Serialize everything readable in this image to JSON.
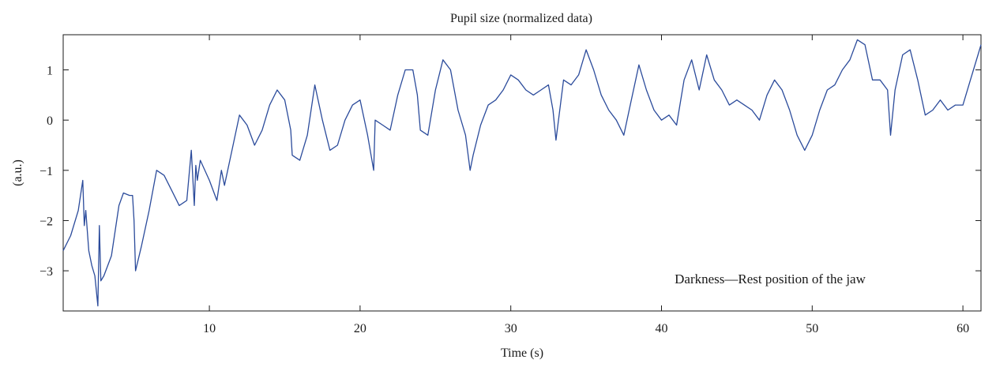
{
  "chart_data": {
    "type": "line",
    "title": "Pupil size (normalized data)",
    "xlabel": "Time (s)",
    "ylabel": "(a.u.)",
    "annotation": "Darkness—Rest position of the jaw",
    "xlim": [
      0.3,
      61.2
    ],
    "ylim": [
      -3.8,
      1.7
    ],
    "xticks": [
      10,
      20,
      30,
      40,
      50,
      60
    ],
    "yticks": [
      -3,
      -2,
      -1,
      0,
      1
    ],
    "xtick_labels": [
      "10",
      "20",
      "30",
      "40",
      "50",
      "60"
    ],
    "ytick_labels": [
      "−3",
      "−2",
      "−1",
      "0",
      "1"
    ],
    "grid": false,
    "series": [
      {
        "color": "#2b4b9b",
        "x": [
          0.3,
          0.8,
          1.3,
          1.6,
          1.7,
          1.8,
          2.0,
          2.2,
          2.4,
          2.6,
          2.7,
          2.8,
          3.0,
          3.5,
          4.0,
          4.3,
          4.7,
          4.9,
          5.0,
          5.1,
          5.5,
          6.0,
          6.5,
          7.0,
          7.5,
          8.0,
          8.5,
          8.8,
          9.0,
          9.1,
          9.2,
          9.4,
          10.0,
          10.5,
          10.8,
          11.0,
          11.5,
          12.0,
          12.5,
          13.0,
          13.5,
          14.0,
          14.5,
          15.0,
          15.2,
          15.4,
          15.5,
          16.0,
          16.5,
          17.0,
          17.5,
          18.0,
          18.5,
          19.0,
          19.5,
          20.0,
          20.5,
          20.9,
          21.0,
          21.5,
          22.0,
          22.5,
          23.0,
          23.5,
          23.8,
          24.0,
          24.5,
          25.0,
          25.5,
          26.0,
          26.5,
          27.0,
          27.3,
          27.5,
          28.0,
          28.5,
          29.0,
          29.5,
          30.0,
          30.5,
          31.0,
          31.5,
          32.0,
          32.5,
          32.8,
          33.0,
          33.5,
          34.0,
          34.5,
          35.0,
          35.5,
          36.0,
          36.5,
          37.0,
          37.5,
          38.0,
          38.5,
          39.0,
          39.5,
          40.0,
          40.5,
          41.0,
          41.5,
          42.0,
          42.5,
          43.0,
          43.5,
          44.0,
          44.5,
          45.0,
          45.5,
          46.0,
          46.5,
          47.0,
          47.5,
          48.0,
          48.5,
          49.0,
          49.5,
          50.0,
          50.5,
          51.0,
          51.5,
          52.0,
          52.5,
          53.0,
          53.5,
          54.0,
          54.5,
          55.0,
          55.2,
          55.5,
          56.0,
          56.5,
          57.0,
          57.5,
          58.0,
          58.5,
          59.0,
          59.5,
          60.0,
          60.5,
          61.0,
          61.2
        ],
        "y": [
          -2.6,
          -2.3,
          -1.8,
          -1.2,
          -2.1,
          -1.8,
          -2.6,
          -2.9,
          -3.1,
          -3.7,
          -2.1,
          -3.2,
          -3.1,
          -2.7,
          -1.7,
          -1.45,
          -1.5,
          -1.5,
          -2.0,
          -3.0,
          -2.5,
          -1.8,
          -1.0,
          -1.1,
          -1.4,
          -1.7,
          -1.6,
          -0.6,
          -1.7,
          -0.9,
          -1.2,
          -0.8,
          -1.2,
          -1.6,
          -1.0,
          -1.3,
          -0.6,
          0.1,
          -0.1,
          -0.5,
          -0.2,
          0.3,
          0.6,
          0.4,
          0.1,
          -0.2,
          -0.7,
          -0.8,
          -0.3,
          0.7,
          0.0,
          -0.6,
          -0.5,
          0.0,
          0.3,
          0.4,
          -0.3,
          -1.0,
          0.0,
          -0.1,
          -0.2,
          0.5,
          1.0,
          1.0,
          0.5,
          -0.2,
          -0.3,
          0.6,
          1.2,
          1.0,
          0.2,
          -0.3,
          -1.0,
          -0.7,
          -0.1,
          0.3,
          0.4,
          0.6,
          0.9,
          0.8,
          0.6,
          0.5,
          0.6,
          0.7,
          0.2,
          -0.4,
          0.8,
          0.7,
          0.9,
          1.4,
          1.0,
          0.5,
          0.2,
          0.0,
          -0.3,
          0.4,
          1.1,
          0.6,
          0.2,
          0.0,
          0.1,
          -0.1,
          0.8,
          1.2,
          0.6,
          1.3,
          0.8,
          0.6,
          0.3,
          0.4,
          0.3,
          0.2,
          0.0,
          0.5,
          0.8,
          0.6,
          0.2,
          -0.3,
          -0.6,
          -0.3,
          0.2,
          0.6,
          0.7,
          1.0,
          1.2,
          1.6,
          1.5,
          0.8,
          0.8,
          0.6,
          -0.3,
          0.6,
          1.3,
          1.4,
          0.8,
          0.1,
          0.2,
          0.4,
          0.2,
          0.3,
          0.3,
          0.8,
          1.3,
          1.5
        ]
      }
    ]
  }
}
